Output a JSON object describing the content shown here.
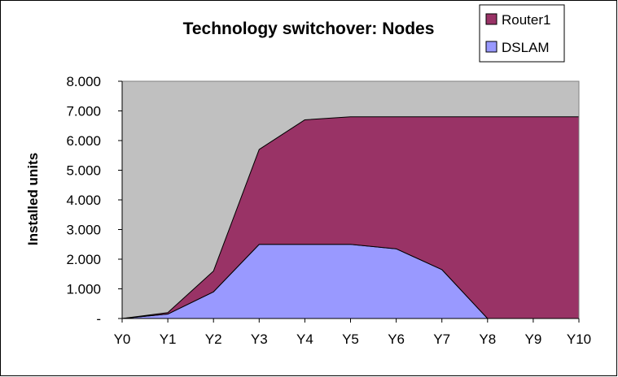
{
  "chart_data": {
    "type": "area",
    "title": "Technology switchover: Nodes",
    "xlabel": "",
    "ylabel": "Installed units",
    "categories": [
      "Y0",
      "Y1",
      "Y2",
      "Y3",
      "Y4",
      "Y5",
      "Y6",
      "Y7",
      "Y8",
      "Y9",
      "Y10"
    ],
    "y_tick_labels": [
      "-",
      "1.000",
      "2.000",
      "3.000",
      "4.000",
      "5.000",
      "6.000",
      "7.000",
      "8.000"
    ],
    "ylim": [
      0,
      8000
    ],
    "stacked": true,
    "series": [
      {
        "name": "DSLAM",
        "values": [
          0,
          150,
          900,
          2500,
          2500,
          2500,
          2350,
          1650,
          0,
          0,
          0
        ],
        "color": "#9999ff"
      },
      {
        "name": "Router1",
        "values": [
          0,
          50,
          700,
          3200,
          4200,
          4300,
          4450,
          5150,
          6800,
          6800,
          6800
        ],
        "color": "#993366"
      }
    ],
    "legend": {
      "placement": "top-right",
      "order": [
        "Router1",
        "DSLAM"
      ]
    },
    "grid": false,
    "plot_background": "#c0c0c0"
  }
}
